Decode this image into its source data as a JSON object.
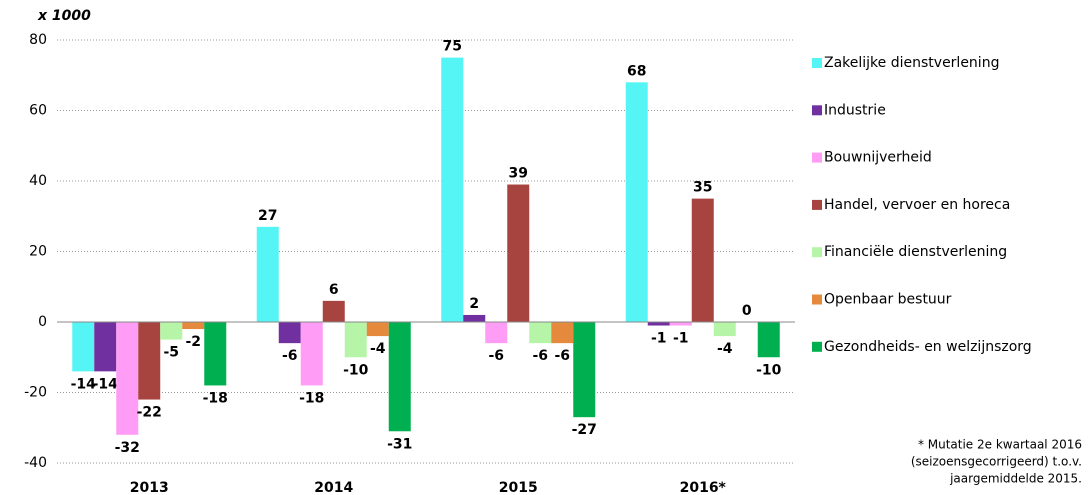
{
  "chart_data": {
    "type": "bar",
    "y_unit": "x 1000",
    "categories": [
      "2013",
      "2014",
      "2015",
      "2016*"
    ],
    "series": [
      {
        "name": "Zakelijke dienstverlening",
        "color": "#55F5F5",
        "label_color": "#33E8E8",
        "values": [
          -14,
          27,
          75,
          68
        ]
      },
      {
        "name": "Industrie",
        "color": "#7030A0",
        "label_color": "#7030A0",
        "values": [
          -14,
          -6,
          2,
          -1
        ]
      },
      {
        "name": "Bouwnijverheid",
        "color": "#FF9CF5",
        "label_color": "#F030E0",
        "values": [
          -32,
          -18,
          -6,
          -1
        ]
      },
      {
        "name": "Handel, vervoer en horeca",
        "color": "#A8443F",
        "label_color": "#C00000",
        "values": [
          -22,
          6,
          39,
          35
        ]
      },
      {
        "name": "Financiële dienstverlening",
        "color": "#B6F5A8",
        "label_color": "#0E5C18",
        "values": [
          -5,
          -10,
          -6,
          -4
        ]
      },
      {
        "name": "Openbaar bestuur",
        "color": "#E58A3C",
        "label_color": "#E07A20",
        "values": [
          -2,
          -4,
          -6,
          0
        ]
      },
      {
        "name": "Gezondheids- en welzijnszorg",
        "color": "#00B050",
        "label_color": "#00A050",
        "values": [
          -18,
          -31,
          -27,
          -10
        ]
      }
    ],
    "ylim": [
      -40,
      80
    ],
    "yticks": [
      -40,
      -20,
      0,
      20,
      40,
      60,
      80
    ],
    "grid": true,
    "note": [
      "* Mutatie  2e kwartaal 2016",
      "(seizoensgecorrigeerd) t.o.v.",
      "jaargemiddelde 2015."
    ]
  }
}
